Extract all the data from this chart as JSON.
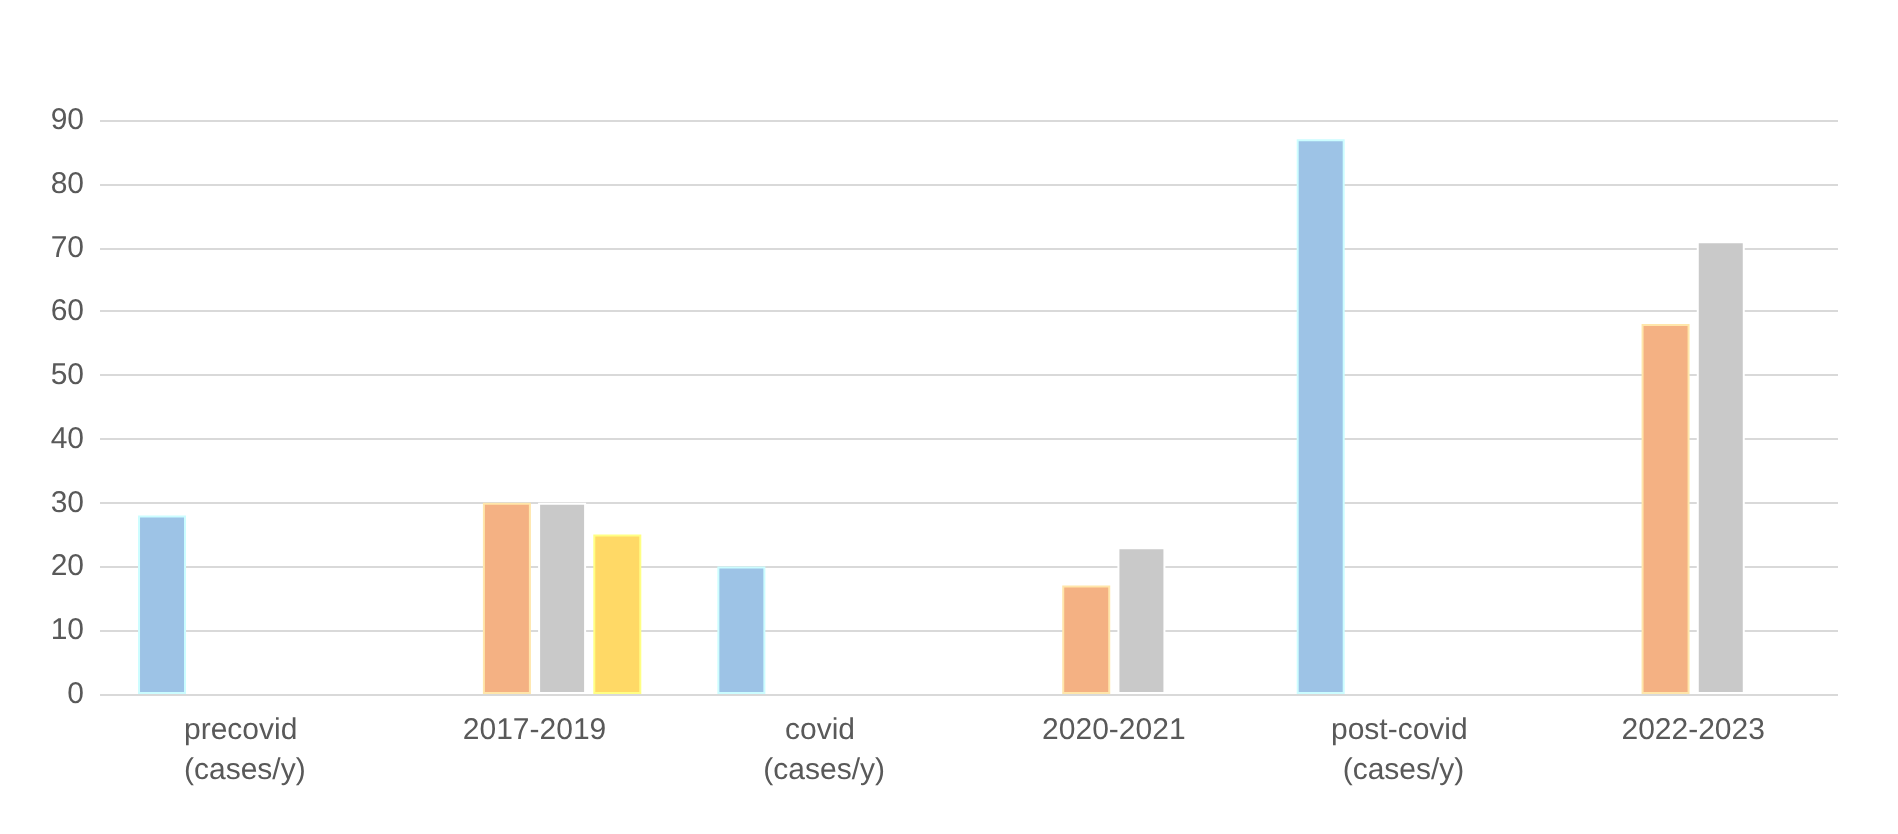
{
  "chart_data": {
    "type": "bar",
    "categories": [
      "precovid (cases/y)",
      "2017-2019",
      "covid (cases/y)",
      "2020-2021",
      "post-covid (cases/y)",
      "2022-2023"
    ],
    "series": [
      {
        "color": "#9dc3e6",
        "values": [
          28,
          null,
          20,
          null,
          87,
          null
        ]
      },
      {
        "color": "#f4b183",
        "values": [
          null,
          30,
          null,
          17,
          null,
          58
        ]
      },
      {
        "color": "#c9c9c9",
        "values": [
          null,
          30,
          null,
          23,
          null,
          71
        ]
      },
      {
        "color": "#ffd966",
        "values": [
          null,
          25,
          null,
          null,
          null,
          null
        ]
      }
    ],
    "ylim": [
      0,
      90
    ],
    "yticks": [
      0,
      10,
      20,
      30,
      40,
      50,
      60,
      70,
      80,
      90
    ],
    "grid": "y"
  }
}
